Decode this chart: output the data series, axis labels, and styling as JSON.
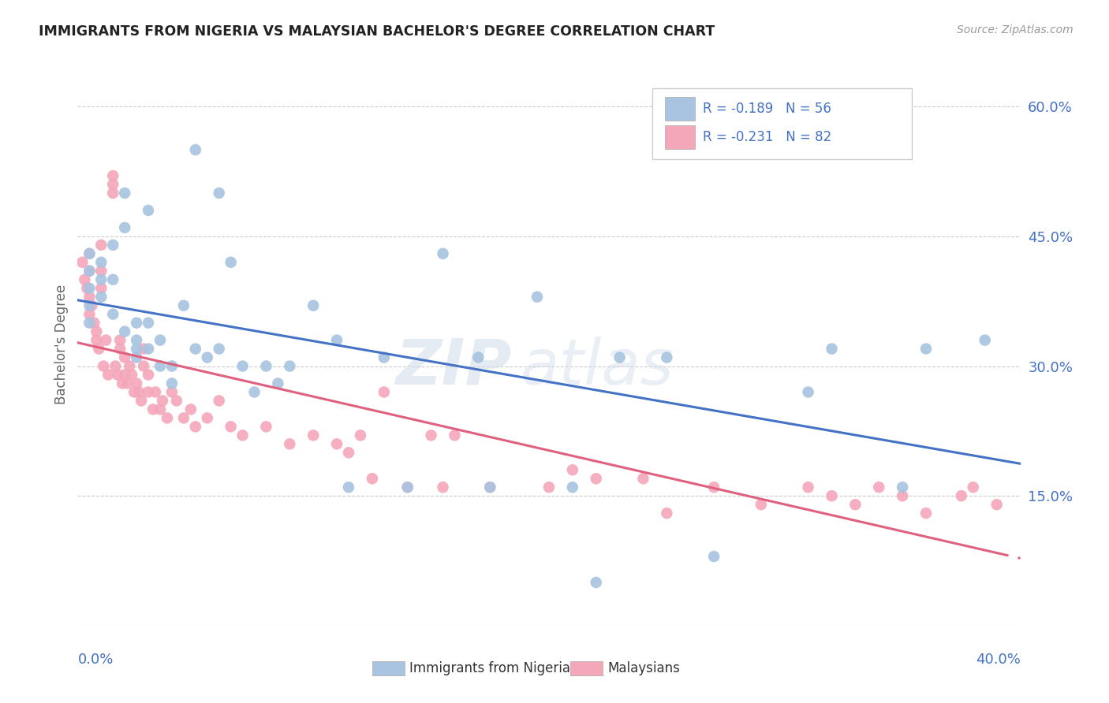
{
  "title": "IMMIGRANTS FROM NIGERIA VS MALAYSIAN BACHELOR'S DEGREE CORRELATION CHART",
  "source": "Source: ZipAtlas.com",
  "ylabel": "Bachelor's Degree",
  "ylabel_right_ticks": [
    "60.0%",
    "45.0%",
    "30.0%",
    "15.0%"
  ],
  "ylabel_right_vals": [
    0.6,
    0.45,
    0.3,
    0.15
  ],
  "xlim": [
    0.0,
    0.4
  ],
  "ylim": [
    0.0,
    0.65
  ],
  "legend_nigeria": "R = -0.189   N = 56",
  "legend_malaysian": "R = -0.231   N = 82",
  "legend_label_nigeria": "Immigrants from Nigeria",
  "legend_label_malaysian": "Malaysians",
  "color_nigeria": "#a8c4e0",
  "color_malaysian": "#f4a7b9",
  "color_line_nigeria": "#4472c4",
  "color_line_malaysian": "#e06080",
  "color_axis_labels": "#4472c4",
  "watermark_zip": "ZIP",
  "watermark_atlas": "atlas",
  "nigeria_scatter_x": [
    0.005,
    0.005,
    0.005,
    0.005,
    0.005,
    0.01,
    0.01,
    0.01,
    0.015,
    0.015,
    0.015,
    0.02,
    0.02,
    0.02,
    0.025,
    0.025,
    0.025,
    0.025,
    0.03,
    0.03,
    0.03,
    0.035,
    0.035,
    0.04,
    0.04,
    0.045,
    0.05,
    0.05,
    0.055,
    0.06,
    0.06,
    0.065,
    0.07,
    0.075,
    0.08,
    0.085,
    0.09,
    0.1,
    0.11,
    0.115,
    0.13,
    0.14,
    0.155,
    0.17,
    0.175,
    0.195,
    0.21,
    0.22,
    0.23,
    0.25,
    0.27,
    0.31,
    0.32,
    0.35,
    0.36,
    0.385
  ],
  "nigeria_scatter_y": [
    0.43,
    0.41,
    0.39,
    0.37,
    0.35,
    0.42,
    0.4,
    0.38,
    0.44,
    0.4,
    0.36,
    0.5,
    0.46,
    0.34,
    0.35,
    0.33,
    0.32,
    0.31,
    0.48,
    0.35,
    0.32,
    0.33,
    0.3,
    0.3,
    0.28,
    0.37,
    0.55,
    0.32,
    0.31,
    0.5,
    0.32,
    0.42,
    0.3,
    0.27,
    0.3,
    0.28,
    0.3,
    0.37,
    0.33,
    0.16,
    0.31,
    0.16,
    0.43,
    0.31,
    0.16,
    0.38,
    0.16,
    0.05,
    0.31,
    0.31,
    0.08,
    0.27,
    0.32,
    0.16,
    0.32,
    0.33
  ],
  "malaysian_scatter_x": [
    0.002,
    0.003,
    0.004,
    0.005,
    0.005,
    0.005,
    0.005,
    0.006,
    0.007,
    0.008,
    0.008,
    0.009,
    0.01,
    0.01,
    0.01,
    0.011,
    0.012,
    0.013,
    0.015,
    0.015,
    0.015,
    0.016,
    0.017,
    0.018,
    0.018,
    0.019,
    0.02,
    0.02,
    0.021,
    0.022,
    0.023,
    0.024,
    0.025,
    0.026,
    0.027,
    0.028,
    0.028,
    0.03,
    0.03,
    0.032,
    0.033,
    0.035,
    0.036,
    0.038,
    0.04,
    0.042,
    0.045,
    0.048,
    0.05,
    0.055,
    0.06,
    0.065,
    0.07,
    0.08,
    0.09,
    0.1,
    0.11,
    0.115,
    0.12,
    0.125,
    0.13,
    0.14,
    0.15,
    0.155,
    0.16,
    0.175,
    0.2,
    0.21,
    0.22,
    0.24,
    0.25,
    0.27,
    0.29,
    0.31,
    0.32,
    0.33,
    0.34,
    0.35,
    0.36,
    0.375,
    0.38,
    0.39
  ],
  "malaysian_scatter_y": [
    0.42,
    0.4,
    0.39,
    0.43,
    0.41,
    0.38,
    0.36,
    0.37,
    0.35,
    0.34,
    0.33,
    0.32,
    0.44,
    0.41,
    0.39,
    0.3,
    0.33,
    0.29,
    0.52,
    0.51,
    0.5,
    0.3,
    0.29,
    0.33,
    0.32,
    0.28,
    0.31,
    0.29,
    0.28,
    0.3,
    0.29,
    0.27,
    0.28,
    0.27,
    0.26,
    0.32,
    0.3,
    0.29,
    0.27,
    0.25,
    0.27,
    0.25,
    0.26,
    0.24,
    0.27,
    0.26,
    0.24,
    0.25,
    0.23,
    0.24,
    0.26,
    0.23,
    0.22,
    0.23,
    0.21,
    0.22,
    0.21,
    0.2,
    0.22,
    0.17,
    0.27,
    0.16,
    0.22,
    0.16,
    0.22,
    0.16,
    0.16,
    0.18,
    0.17,
    0.17,
    0.13,
    0.16,
    0.14,
    0.16,
    0.15,
    0.14,
    0.16,
    0.15,
    0.13,
    0.15,
    0.16,
    0.14
  ]
}
